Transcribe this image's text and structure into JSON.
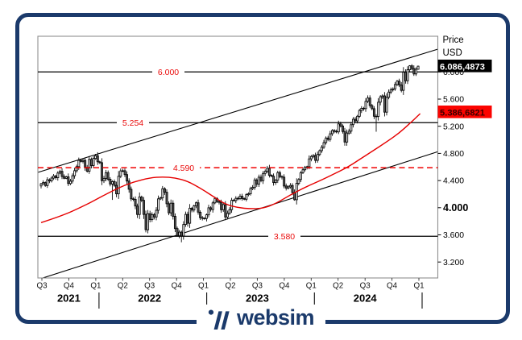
{
  "frame": {
    "border_color": "#1b3a6b",
    "background": "#ffffff"
  },
  "logo": {
    "text": "websim",
    "color": "#1b3a6b",
    "icon": "websim-slashes-icon"
  },
  "axis_right": {
    "title": "Price",
    "currency": "USD",
    "ticks": [
      "6.000",
      "5.600",
      "5.200",
      "4.800",
      "4.400",
      "4.000",
      "3.600",
      "3.200"
    ],
    "emphasized_tick": "4.000"
  },
  "badges": {
    "last_price": {
      "text": "6.086,4873",
      "value": 6.0865,
      "bg": "#000000",
      "fg": "#ffffff"
    },
    "ma_price": {
      "text": "5.386,6821",
      "value": 5.3866,
      "bg": "#fb0300",
      "fg": "#3a0000"
    }
  },
  "chart_data": {
    "type": "candlestick",
    "unit": "index points (thousands), USD",
    "y_axis": {
      "min": 2.965,
      "max": 6.526,
      "tick_values": [
        6.0,
        5.6,
        5.2,
        4.8,
        4.4,
        4.0,
        3.6,
        3.2
      ],
      "tick_labels": [
        "6.000",
        "5.600",
        "5.200",
        "4.800",
        "4.400",
        "4.000",
        "3.600",
        "3.200"
      ],
      "emphasized_value": 4.0
    },
    "x_axis": {
      "quarters": [
        "Q3",
        "Q4",
        "Q1",
        "Q2",
        "Q3",
        "Q4",
        "Q1",
        "Q2",
        "Q3",
        "Q4",
        "Q1",
        "Q2",
        "Q3",
        "Q4",
        "Q1"
      ],
      "years": [
        {
          "label": "2021",
          "from_q": 0,
          "to_q": 2
        },
        {
          "label": "2022",
          "from_q": 2,
          "to_q": 6
        },
        {
          "label": "2023",
          "from_q": 6,
          "to_q": 10
        },
        {
          "label": "2024",
          "from_q": 10,
          "to_q": 14
        }
      ],
      "year_separators_at_q": [
        2,
        6,
        10,
        14
      ]
    },
    "levels": [
      {
        "label": "6.000",
        "value": 6.0,
        "style": "solid",
        "label_x": 209
      },
      {
        "label": "5.254",
        "value": 5.254,
        "style": "solid",
        "label_x": 165
      },
      {
        "label": "4.590",
        "value": 4.59,
        "style": "dashed",
        "label_x": 228
      },
      {
        "label": "3.580",
        "value": 3.58,
        "style": "solid",
        "label_x": 353
      }
    ],
    "trendlines": [
      {
        "name": "channel-upper",
        "v1": 4.52,
        "v2": 6.336
      },
      {
        "name": "channel-lower",
        "v1": 2.941,
        "v2": 4.825
      }
    ],
    "moving_average": {
      "color": "#e60000",
      "last_value": 5.3866,
      "points": [
        [
          0,
          3.78
        ],
        [
          10,
          3.88
        ],
        [
          20,
          4.02
        ],
        [
          28,
          4.15
        ],
        [
          36,
          4.28
        ],
        [
          44,
          4.38
        ],
        [
          52,
          4.44
        ],
        [
          58,
          4.455
        ],
        [
          64,
          4.44
        ],
        [
          70,
          4.39
        ],
        [
          76,
          4.29
        ],
        [
          82,
          4.17
        ],
        [
          88,
          4.05
        ],
        [
          94,
          4.0
        ],
        [
          100,
          3.985
        ],
        [
          106,
          3.99
        ],
        [
          112,
          4.06
        ],
        [
          119,
          4.19
        ],
        [
          126,
          4.3
        ],
        [
          134,
          4.41
        ],
        [
          140,
          4.5
        ],
        [
          146,
          4.59
        ],
        [
          152,
          4.71
        ],
        [
          158,
          4.83
        ],
        [
          165,
          4.97
        ],
        [
          171,
          5.1
        ],
        [
          176,
          5.24
        ],
        [
          181,
          5.3866
        ]
      ]
    },
    "first_open": 4.32,
    "weekly_closes": [
      4.352,
      4.37,
      4.327,
      4.412,
      4.395,
      4.437,
      4.468,
      4.442,
      4.51,
      4.535,
      4.459,
      4.433,
      4.455,
      4.357,
      4.391,
      4.471,
      4.545,
      4.605,
      4.698,
      4.683,
      4.698,
      4.595,
      4.538,
      4.712,
      4.621,
      4.726,
      4.766,
      4.677,
      4.663,
      4.398,
      4.432,
      4.516,
      4.419,
      4.349,
      4.385,
      4.329,
      4.204,
      4.463,
      4.543,
      4.545,
      4.488,
      4.393,
      4.272,
      4.131,
      4.123,
      4.024,
      3.901,
      4.158,
      4.109,
      3.901,
      3.675,
      3.912,
      3.825,
      3.899,
      3.863,
      3.962,
      4.13,
      4.145,
      4.28,
      4.228,
      4.058,
      3.924,
      4.067,
      3.873,
      3.693,
      3.586,
      3.64,
      3.583,
      3.753,
      3.901,
      3.771,
      3.993,
      3.965,
      4.026,
      4.072,
      3.934,
      3.852,
      3.845,
      3.84,
      3.895,
      3.999,
      3.973,
      4.071,
      4.136,
      4.09,
      4.079,
      3.97,
      4.046,
      3.862,
      3.917,
      3.971,
      4.109,
      4.105,
      4.138,
      4.134,
      4.169,
      4.136,
      4.124,
      4.192,
      4.205,
      4.282,
      4.299,
      4.41,
      4.348,
      4.45,
      4.399,
      4.505,
      4.536,
      4.582,
      4.478,
      4.464,
      4.37,
      4.406,
      4.516,
      4.458,
      4.45,
      4.32,
      4.288,
      4.308,
      4.328,
      4.224,
      4.117,
      4.358,
      4.415,
      4.514,
      4.559,
      4.594,
      4.604,
      4.719,
      4.755,
      4.77,
      4.697,
      4.784,
      4.84,
      4.891,
      4.959,
      5.027,
      5.006,
      5.089,
      5.137,
      5.124,
      5.117,
      5.234,
      5.204,
      5.123,
      4.967,
      5.1,
      5.128,
      5.223,
      5.303,
      5.278,
      5.347,
      5.432,
      5.465,
      5.46,
      5.567,
      5.615,
      5.505,
      5.459,
      5.347,
      5.344,
      5.554,
      5.634,
      5.648,
      5.408,
      5.626,
      5.703,
      5.738,
      5.751,
      5.815,
      5.865,
      5.808,
      5.729,
      5.996,
      5.87,
      6.032,
      6.09,
      6.051,
      5.97,
      6.04,
      6.086
    ],
    "wick_overrides": {
      "27": {
        "h": 4.818
      },
      "34": {
        "l": 4.115
      },
      "50": {
        "l": 3.637
      },
      "65": {
        "l": 3.584
      },
      "67": {
        "l": 3.491
      },
      "121": {
        "l": 4.103
      },
      "160": {
        "l": 5.119
      },
      "176": {
        "h": 6.1
      },
      "180": {
        "h": 6.092,
        "l": 6.045
      }
    },
    "colors": {
      "up_fill": "#ffffff",
      "down_fill": "#5f5f5f",
      "outline": "#000000",
      "level_line": "#000000",
      "level_label": "#ea0c0c",
      "dashed_line": "#f10000",
      "plot_border": "#8f8f8f",
      "axis_text": "#000000"
    }
  }
}
